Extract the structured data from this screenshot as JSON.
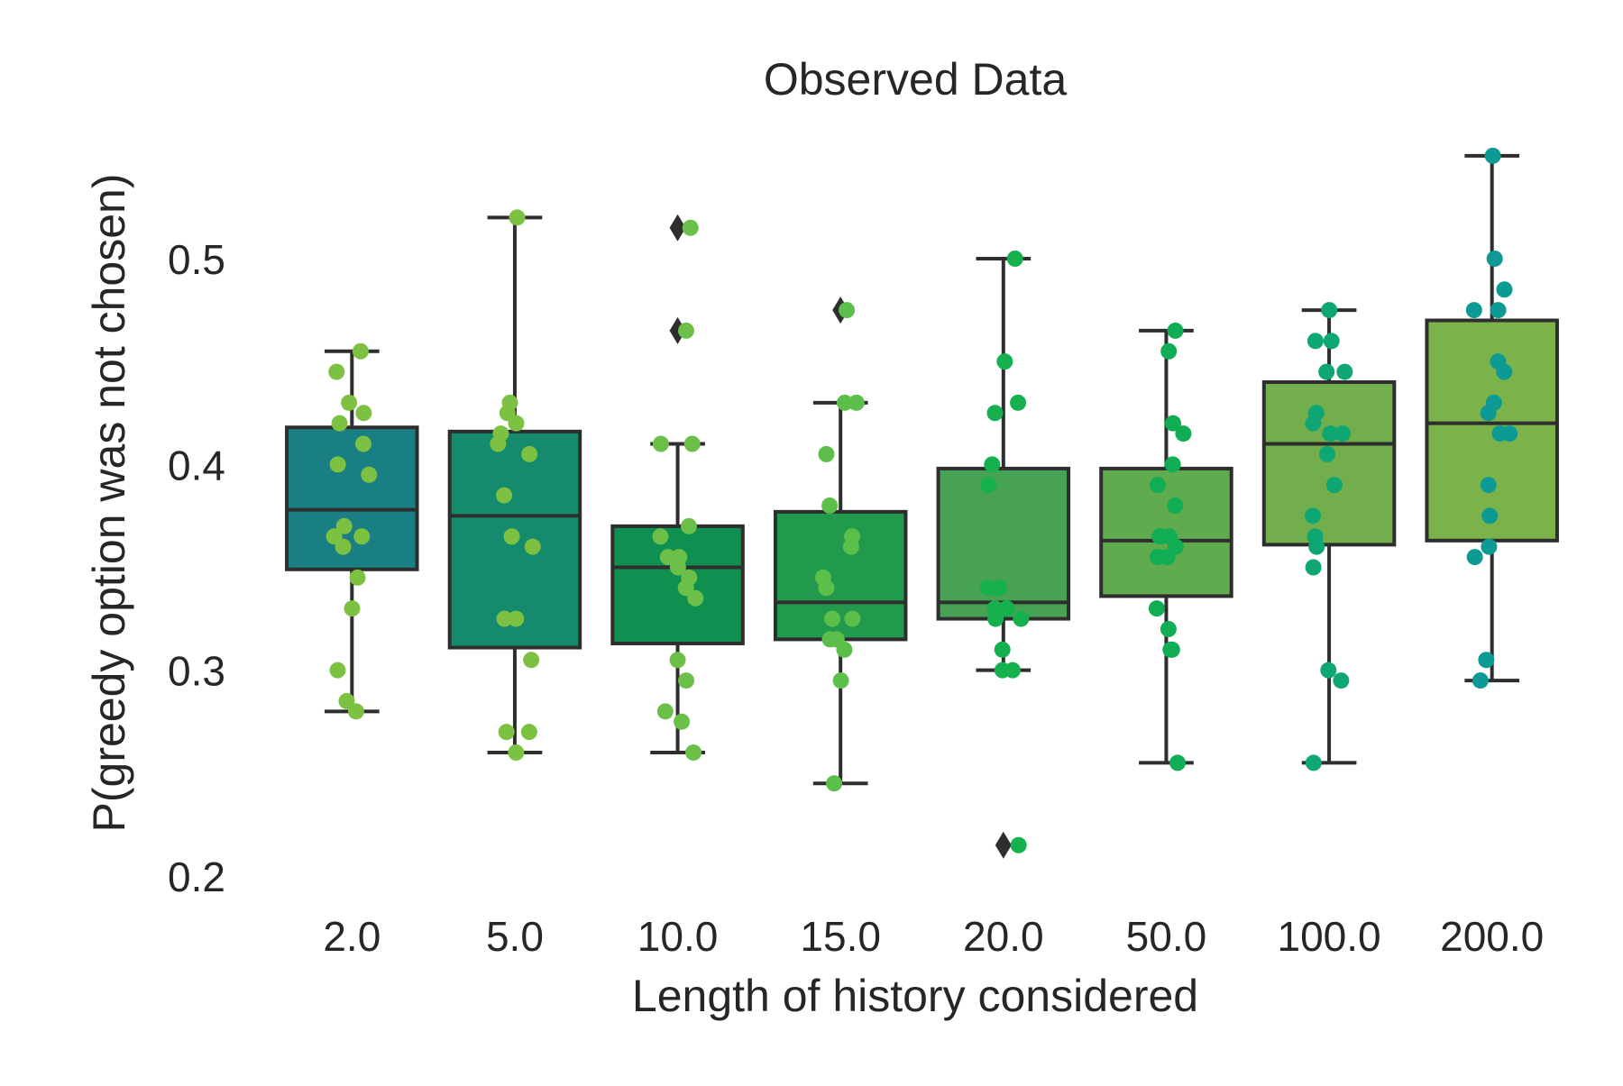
{
  "chart_data": {
    "type": "box",
    "title": "Observed Data",
    "xlabel": "Length of history considered",
    "ylabel": "P(greedy option was not chosen)",
    "ylim": [
      0.185,
      0.57
    ],
    "yticks": [
      0.2,
      0.3,
      0.4,
      0.5
    ],
    "ytick_labels": [
      "0.2",
      "0.3",
      "0.4",
      "0.5"
    ],
    "categories": [
      "2.0",
      "5.0",
      "10.0",
      "15.0",
      "20.0",
      "50.0",
      "100.0",
      "200.0"
    ],
    "grid": false,
    "legend": "none",
    "boxes": [
      {
        "category": "2.0",
        "q1": 0.349,
        "median": 0.378,
        "q3": 0.418,
        "whisker_low": 0.28,
        "whisker_high": 0.455,
        "fliers": [],
        "box_color": "#1a7f82",
        "point_color": "#7cc142",
        "points": [
          0.455,
          0.445,
          0.43,
          0.425,
          0.42,
          0.41,
          0.4,
          0.395,
          0.37,
          0.365,
          0.365,
          0.36,
          0.345,
          0.33,
          0.3,
          0.285,
          0.28
        ]
      },
      {
        "category": "5.0",
        "q1": 0.311,
        "median": 0.375,
        "q3": 0.416,
        "whisker_low": 0.26,
        "whisker_high": 0.52,
        "fliers": [],
        "box_color": "#158a6c",
        "point_color": "#7cc142",
        "points": [
          0.52,
          0.43,
          0.425,
          0.42,
          0.415,
          0.41,
          0.405,
          0.385,
          0.365,
          0.36,
          0.325,
          0.325,
          0.305,
          0.27,
          0.27,
          0.26
        ]
      },
      {
        "category": "10.0",
        "q1": 0.313,
        "median": 0.35,
        "q3": 0.37,
        "whisker_low": 0.26,
        "whisker_high": 0.41,
        "fliers": [
          0.515,
          0.465
        ],
        "box_color": "#0f9050",
        "point_color": "#6cc04a",
        "points": [
          0.515,
          0.465,
          0.41,
          0.41,
          0.37,
          0.365,
          0.355,
          0.355,
          0.35,
          0.345,
          0.34,
          0.335,
          0.305,
          0.295,
          0.28,
          0.275,
          0.26
        ]
      },
      {
        "category": "15.0",
        "q1": 0.315,
        "median": 0.333,
        "q3": 0.377,
        "whisker_low": 0.245,
        "whisker_high": 0.43,
        "fliers": [
          0.475
        ],
        "box_color": "#229a4e",
        "point_color": "#5cbf4a",
        "points": [
          0.475,
          0.43,
          0.43,
          0.405,
          0.38,
          0.365,
          0.36,
          0.345,
          0.34,
          0.325,
          0.325,
          0.315,
          0.315,
          0.31,
          0.295,
          0.245
        ]
      },
      {
        "category": "20.0",
        "q1": 0.325,
        "median": 0.333,
        "q3": 0.398,
        "whisker_low": 0.3,
        "whisker_high": 0.5,
        "fliers": [
          0.215
        ],
        "box_color": "#48a255",
        "point_color": "#16b14e",
        "points": [
          0.5,
          0.45,
          0.43,
          0.425,
          0.4,
          0.39,
          0.34,
          0.34,
          0.33,
          0.33,
          0.325,
          0.325,
          0.31,
          0.3,
          0.3,
          0.215
        ]
      },
      {
        "category": "50.0",
        "q1": 0.336,
        "median": 0.363,
        "q3": 0.398,
        "whisker_low": 0.255,
        "whisker_high": 0.465,
        "fliers": [],
        "box_color": "#5fab4e",
        "point_color": "#10ad55",
        "points": [
          0.465,
          0.455,
          0.42,
          0.415,
          0.4,
          0.39,
          0.38,
          0.365,
          0.365,
          0.36,
          0.355,
          0.355,
          0.33,
          0.32,
          0.31,
          0.31,
          0.255
        ]
      },
      {
        "category": "100.0",
        "q1": 0.361,
        "median": 0.41,
        "q3": 0.44,
        "whisker_low": 0.255,
        "whisker_high": 0.475,
        "fliers": [],
        "box_color": "#72ae4c",
        "point_color": "#0ea774",
        "points": [
          0.475,
          0.46,
          0.46,
          0.445,
          0.445,
          0.425,
          0.42,
          0.415,
          0.415,
          0.405,
          0.39,
          0.375,
          0.365,
          0.36,
          0.35,
          0.3,
          0.295,
          0.255
        ]
      },
      {
        "category": "200.0",
        "q1": 0.363,
        "median": 0.42,
        "q3": 0.47,
        "whisker_low": 0.295,
        "whisker_high": 0.55,
        "fliers": [],
        "box_color": "#7cb24a",
        "point_color": "#0d9a94",
        "points": [
          0.55,
          0.5,
          0.485,
          0.475,
          0.475,
          0.45,
          0.445,
          0.43,
          0.425,
          0.415,
          0.415,
          0.39,
          0.375,
          0.36,
          0.355,
          0.305,
          0.295
        ]
      }
    ]
  }
}
